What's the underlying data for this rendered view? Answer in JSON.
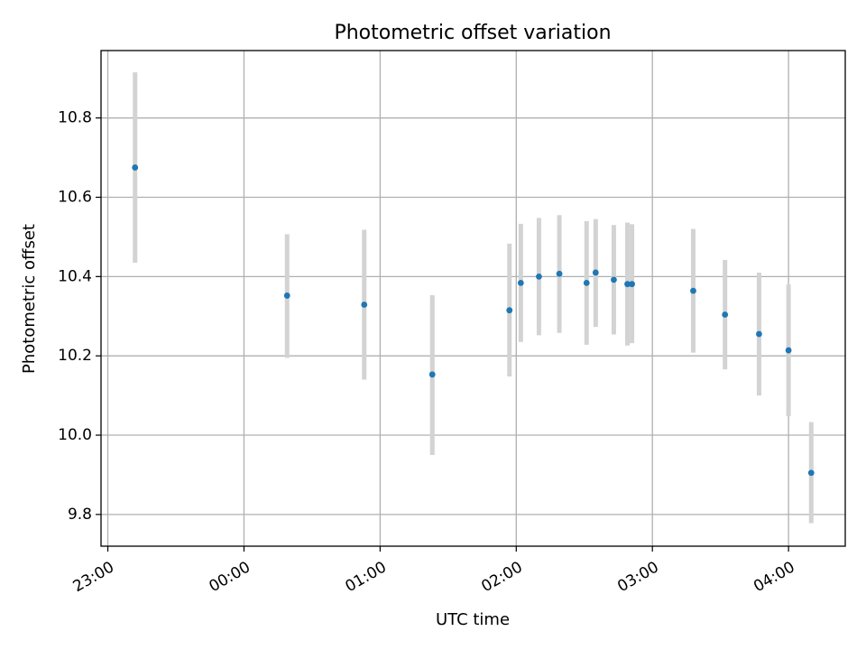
{
  "chart_data": {
    "type": "scatter",
    "title": "Photometric offset variation",
    "xlabel": "UTC time",
    "ylabel": "Photometric offset",
    "xlim": [
      "22:57",
      "04:25"
    ],
    "ylim": [
      9.72,
      10.97
    ],
    "x_ticks": [
      "23:00",
      "00:00",
      "01:00",
      "02:00",
      "03:00",
      "04:00"
    ],
    "y_ticks": [
      9.8,
      10.0,
      10.2,
      10.4,
      10.6,
      10.8
    ],
    "grid": true,
    "colors": {
      "point": "#1f77b4",
      "error_bar": "#d3d3d3"
    },
    "points": [
      {
        "x": "23:12",
        "y": 10.675,
        "ylow": 10.435,
        "yhigh": 10.915
      },
      {
        "x": "00:19",
        "y": 10.352,
        "ylow": 10.195,
        "yhigh": 10.507
      },
      {
        "x": "00:53",
        "y": 10.329,
        "ylow": 10.14,
        "yhigh": 10.518
      },
      {
        "x": "01:23",
        "y": 10.153,
        "ylow": 9.95,
        "yhigh": 10.353
      },
      {
        "x": "01:57",
        "y": 10.315,
        "ylow": 10.148,
        "yhigh": 10.483
      },
      {
        "x": "02:02",
        "y": 10.384,
        "ylow": 10.235,
        "yhigh": 10.533
      },
      {
        "x": "02:10",
        "y": 10.4,
        "ylow": 10.252,
        "yhigh": 10.548
      },
      {
        "x": "02:19",
        "y": 10.407,
        "ylow": 10.258,
        "yhigh": 10.555
      },
      {
        "x": "02:31",
        "y": 10.384,
        "ylow": 10.228,
        "yhigh": 10.54
      },
      {
        "x": "02:35",
        "y": 10.41,
        "ylow": 10.273,
        "yhigh": 10.545
      },
      {
        "x": "02:43",
        "y": 10.392,
        "ylow": 10.254,
        "yhigh": 10.53
      },
      {
        "x": "02:49",
        "y": 10.381,
        "ylow": 10.226,
        "yhigh": 10.536
      },
      {
        "x": "02:51",
        "y": 10.381,
        "ylow": 10.232,
        "yhigh": 10.532
      },
      {
        "x": "03:18",
        "y": 10.364,
        "ylow": 10.208,
        "yhigh": 10.52
      },
      {
        "x": "03:32",
        "y": 10.304,
        "ylow": 10.166,
        "yhigh": 10.442
      },
      {
        "x": "03:47",
        "y": 10.255,
        "ylow": 10.1,
        "yhigh": 10.41
      },
      {
        "x": "04:00",
        "y": 10.214,
        "ylow": 10.048,
        "yhigh": 10.38
      },
      {
        "x": "04:10",
        "y": 9.905,
        "ylow": 9.778,
        "yhigh": 10.033
      }
    ]
  }
}
